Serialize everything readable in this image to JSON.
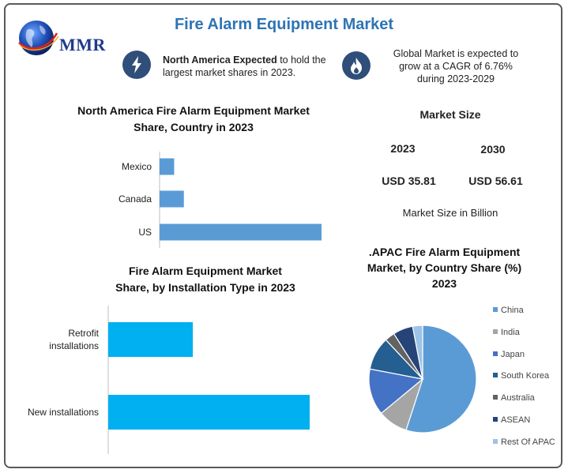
{
  "header": {
    "title": "Fire Alarm Equipment Market",
    "logo_text": "MMR"
  },
  "info": {
    "left_bold": "North America Expected",
    "left_rest_line1": " to hold the",
    "left_line2": "largest market shares in 2023.",
    "right_line1": "Global Market is expected to",
    "right_line2": "grow at a CAGR of 6.76%",
    "right_line3": "during 2023-2029",
    "left_icon": "lightning-icon",
    "right_icon": "flame-icon"
  },
  "market_size": {
    "title": "Market Size",
    "year1": "2023",
    "year2": "2030",
    "value1": "USD 35.81",
    "value2": "USD 56.61",
    "note": "Market Size in Billion"
  },
  "colors": {
    "title_blue": "#2e74b5",
    "icon_circle": "#2f4e79",
    "na_bar": "#5b9bd5",
    "install_bar": "#00b0f0"
  },
  "chart_data": [
    {
      "type": "bar",
      "orientation": "horizontal",
      "title_line1": "North America Fire Alarm Equipment Market",
      "title_line2": "Share, Country  in 2023",
      "categories": [
        "Mexico",
        "Canada",
        "US"
      ],
      "values": [
        9,
        15,
        100
      ],
      "xlim": [
        0,
        100
      ],
      "grid": false
    },
    {
      "type": "bar",
      "orientation": "horizontal",
      "title_line1": "Fire Alarm Equipment Market",
      "title_line2": "Share, by Installation Type  in 2023",
      "categories": [
        "Retrofit installations",
        "New installations"
      ],
      "category_lines": [
        [
          "Retrofit",
          "installations"
        ],
        [
          "New installations"
        ]
      ],
      "values": [
        42,
        100
      ],
      "xlim": [
        0,
        100
      ],
      "grid": false
    },
    {
      "type": "pie",
      "title_line1": ".APAC Fire Alarm Equipment",
      "title_line2": "Market, by Country Share (%)",
      "title_line3": "2023",
      "labels": [
        "China",
        "India",
        "Japan",
        "South Korea",
        "Australia",
        "ASEAN",
        "Rest Of APAC"
      ],
      "values": [
        55,
        9,
        14,
        10,
        3,
        6,
        3
      ],
      "colors": [
        "#5b9bd5",
        "#a5a5a5",
        "#4472c4",
        "#255e91",
        "#636363",
        "#264478",
        "#9dc3e6"
      ],
      "legend": "right"
    }
  ]
}
